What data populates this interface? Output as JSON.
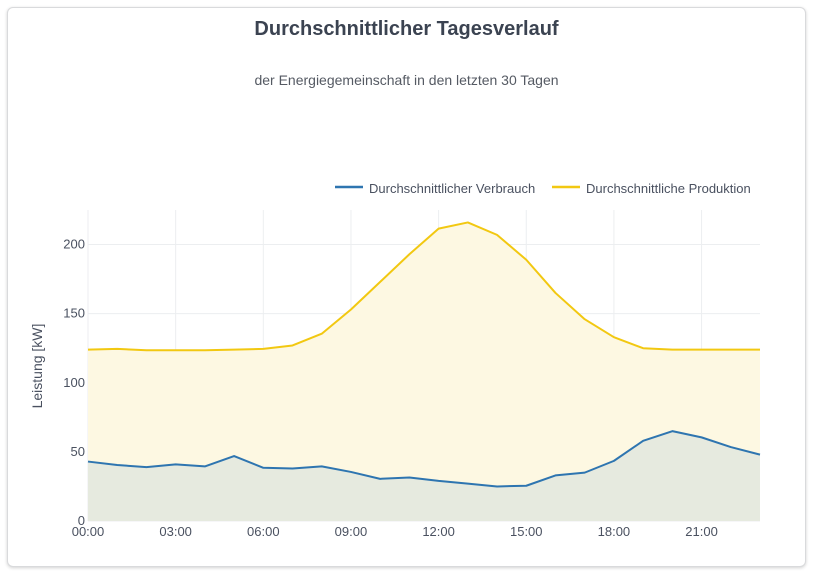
{
  "chart_data": {
    "type": "area",
    "title": "Durchschnittlicher Tagesverlauf",
    "subtitle": "der Energiegemeinschaft in den letzten 30 Tagen",
    "xlabel": "",
    "ylabel": "Leistung [kW]",
    "ylim": [
      0,
      225
    ],
    "yticks": [
      0,
      50,
      100,
      150,
      200
    ],
    "xticks": [
      "00:00",
      "03:00",
      "06:00",
      "09:00",
      "12:00",
      "15:00",
      "18:00",
      "21:00"
    ],
    "x": [
      "00:00",
      "01:00",
      "02:00",
      "03:00",
      "04:00",
      "05:00",
      "06:00",
      "07:00",
      "08:00",
      "09:00",
      "10:00",
      "11:00",
      "12:00",
      "13:00",
      "14:00",
      "15:00",
      "16:00",
      "17:00",
      "18:00",
      "19:00",
      "20:00",
      "21:00",
      "22:00",
      "23:00"
    ],
    "grid": true,
    "legend_position": "top-right",
    "series": [
      {
        "name": "Durchschnittlicher Verbrauch",
        "color": "#2e75b0",
        "fill": "#e6eadf",
        "values": [
          43,
          40.5,
          39,
          41,
          39.5,
          47,
          38.5,
          38,
          39.5,
          35.5,
          30.5,
          31.5,
          29,
          27,
          25,
          25.5,
          33,
          35,
          43.5,
          58,
          65,
          60.5,
          53.5,
          48
        ]
      },
      {
        "name": "Durchschnittliche Produktion",
        "color": "#f2c811",
        "fill": "#fdf8e2",
        "values": [
          124,
          124.5,
          123.5,
          123.5,
          123.5,
          124,
          124.5,
          127,
          135.5,
          153,
          173,
          193,
          211.5,
          216,
          207,
          189,
          165,
          146,
          133,
          125,
          124,
          124,
          124,
          124
        ]
      }
    ]
  }
}
